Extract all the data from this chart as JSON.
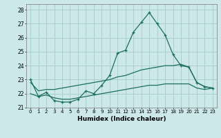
{
  "xlabel": "Humidex (Indice chaleur)",
  "bg_color": "#cce8e8",
  "grid_color": "#aacece",
  "line_color": "#1a6e5e",
  "xlim": [
    -0.5,
    23.5
  ],
  "ylim": [
    21.0,
    28.4
  ],
  "yticks": [
    21,
    22,
    23,
    24,
    25,
    26,
    27,
    28
  ],
  "xticks": [
    0,
    1,
    2,
    3,
    4,
    5,
    6,
    7,
    8,
    9,
    10,
    11,
    12,
    13,
    14,
    15,
    16,
    17,
    18,
    19,
    20,
    21,
    22,
    23
  ],
  "series_main": [
    23.0,
    21.8,
    22.1,
    21.5,
    21.4,
    21.4,
    21.6,
    22.2,
    22.0,
    22.6,
    23.3,
    24.9,
    25.1,
    26.4,
    27.1,
    27.8,
    27.0,
    26.2,
    24.8,
    24.0,
    23.9,
    22.8,
    22.5,
    22.4
  ],
  "series_upper": [
    22.8,
    22.2,
    22.3,
    22.3,
    22.4,
    22.5,
    22.6,
    22.7,
    22.8,
    22.9,
    23.0,
    23.2,
    23.3,
    23.5,
    23.7,
    23.8,
    23.9,
    24.0,
    24.0,
    24.1,
    23.9,
    22.8,
    22.5,
    22.4
  ],
  "series_lower": [
    22.0,
    21.8,
    21.9,
    21.7,
    21.6,
    21.6,
    21.7,
    21.8,
    21.9,
    22.0,
    22.1,
    22.2,
    22.3,
    22.4,
    22.5,
    22.6,
    22.6,
    22.7,
    22.7,
    22.7,
    22.7,
    22.4,
    22.3,
    22.4
  ]
}
